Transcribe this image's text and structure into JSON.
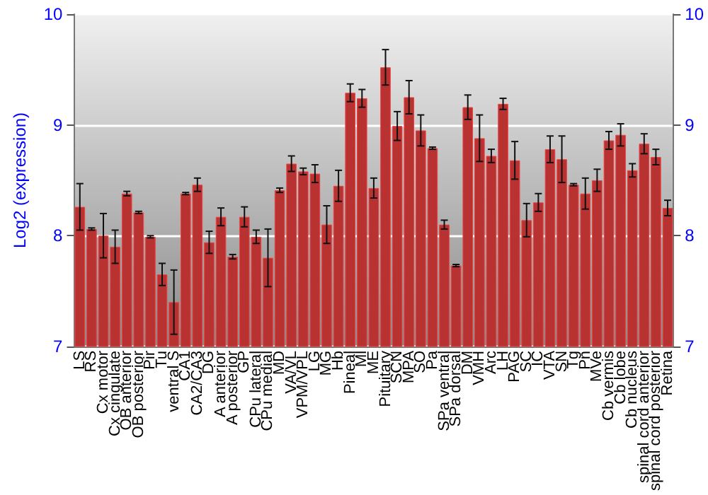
{
  "chart_data": {
    "type": "bar",
    "ylabel": "Log2 (expression)",
    "categories": [
      "LS",
      "RS",
      "Cx motor",
      "Cx cingulate",
      "OB anterior",
      "OB posterior",
      "Pir",
      "Tu",
      "ventral S",
      "CA1",
      "CA2/CA3",
      "DG",
      "A anterior",
      "A posterior",
      "GP",
      "CPu lateral",
      "CPu medial",
      "MD",
      "VA/VL",
      "VPM/VPL",
      "LG",
      "MG",
      "Hb",
      "Pineal",
      "Ml",
      "ME",
      "Pituitary",
      "SCN",
      "MPA",
      "SO",
      "Pa",
      "SPa ventral",
      "SPa dorsal",
      "DM",
      "VMH",
      "Arc",
      "LH",
      "PAG",
      "SC",
      "IC",
      "VTA",
      "SN",
      "Tg",
      "Pn",
      "MVe",
      "Cb vermis",
      "Cb lobe",
      "Cb nucleus",
      "spinal cord anterior",
      "spinal cord posterior",
      "Retina"
    ],
    "values": [
      8.26,
      8.06,
      8.0,
      7.9,
      8.38,
      8.21,
      7.99,
      7.65,
      7.4,
      8.38,
      8.46,
      7.94,
      8.17,
      7.81,
      8.17,
      7.99,
      7.8,
      8.41,
      8.65,
      8.58,
      8.56,
      8.1,
      8.45,
      9.29,
      9.24,
      8.43,
      9.52,
      8.99,
      9.25,
      8.95,
      8.79,
      8.1,
      7.73,
      9.16,
      8.88,
      8.72,
      9.19,
      8.68,
      8.14,
      8.3,
      8.78,
      8.69,
      8.46,
      8.38,
      8.5,
      8.86,
      8.91,
      8.59,
      8.83,
      8.71,
      8.25
    ],
    "errors": [
      0.21,
      0.01,
      0.2,
      0.15,
      0.02,
      0.01,
      0.01,
      0.1,
      0.29,
      0.01,
      0.06,
      0.1,
      0.08,
      0.02,
      0.09,
      0.06,
      0.26,
      0.02,
      0.07,
      0.03,
      0.08,
      0.17,
      0.14,
      0.08,
      0.08,
      0.09,
      0.16,
      0.13,
      0.15,
      0.14,
      0.01,
      0.04,
      0.01,
      0.11,
      0.21,
      0.06,
      0.05,
      0.17,
      0.15,
      0.08,
      0.12,
      0.21,
      0.01,
      0.14,
      0.1,
      0.08,
      0.1,
      0.06,
      0.09,
      0.07,
      0.07
    ],
    "color": "#b83232",
    "ylim": [
      7,
      10
    ],
    "yticks": [
      7,
      8,
      9,
      10
    ],
    "y2lim": [
      7,
      10
    ],
    "y2ticks": [
      7,
      8,
      9,
      10
    ],
    "grid": "y"
  }
}
